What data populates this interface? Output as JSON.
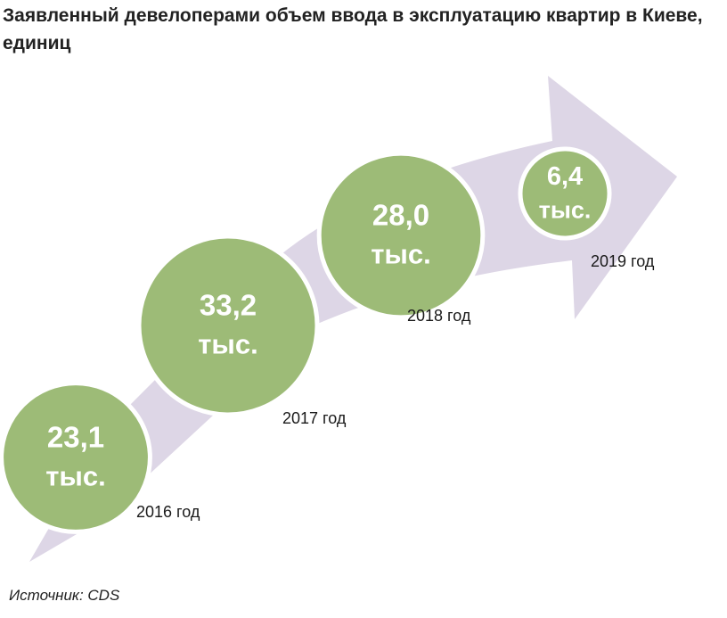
{
  "title": "Заявленный девелоперами объем ввода в эксплуатацию квартир в Киеве, единиц",
  "source": "Источник: CDS",
  "colors": {
    "arrow": "#ddd6e6",
    "bubble": "#9dbb77",
    "bubble_border": "#ffffff",
    "value_text": "#ffffff",
    "label_text": "#1a1a1a"
  },
  "chart_data": {
    "type": "bubble",
    "title": "Заявленный девелоперами объем ввода в эксплуатацию квартир в Киеве, единиц",
    "unit": "тыс.",
    "categories": [
      "2016 год",
      "2017 год",
      "2018 год",
      "2019 год"
    ],
    "values": [
      23.1,
      33.2,
      28.0,
      6.4
    ],
    "value_labels": [
      "23,1",
      "33,2",
      "28,0",
      "6,4"
    ],
    "source": "Источник: CDS"
  }
}
